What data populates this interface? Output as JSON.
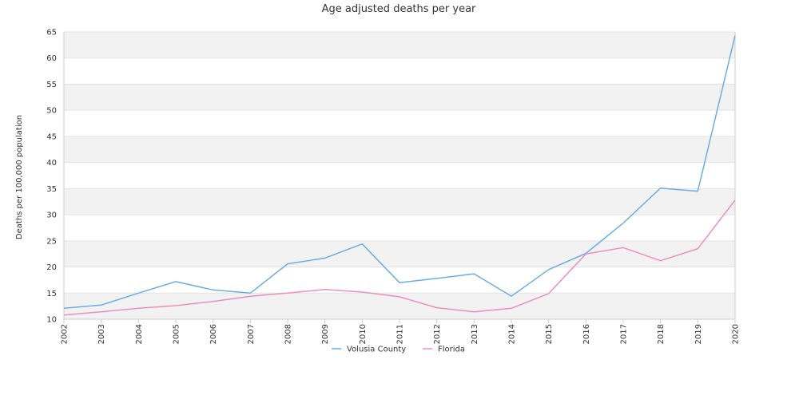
{
  "chart_data": {
    "type": "line",
    "title": "Age adjusted deaths per year",
    "ylabel": "Deaths per 100,000 population",
    "xlabel": "",
    "ylim": [
      10,
      65
    ],
    "yticks": [
      10,
      15,
      20,
      25,
      30,
      35,
      40,
      45,
      50,
      55,
      60,
      65
    ],
    "x": [
      "2002",
      "2003",
      "2004",
      "2005",
      "2006",
      "2007",
      "2008",
      "2009",
      "2010",
      "2011",
      "2012",
      "2013",
      "2014",
      "2015",
      "2016",
      "2017",
      "2018",
      "2019",
      "2020"
    ],
    "grid": "horizontal bands",
    "legend_position": "bottom-center",
    "series": [
      {
        "name": "Volusia County",
        "color": "#6aaee8",
        "values": [
          12.1,
          12.7,
          15.0,
          17.2,
          15.6,
          15.0,
          20.6,
          21.7,
          24.4,
          17.0,
          17.8,
          18.7,
          14.4,
          19.5,
          22.6,
          28.4,
          35.1,
          34.5,
          64.3
        ]
      },
      {
        "name": "Florida",
        "color": "#ec8fbf",
        "values": [
          10.8,
          11.4,
          12.1,
          12.6,
          13.4,
          14.4,
          15.0,
          15.7,
          15.2,
          14.3,
          12.2,
          11.4,
          12.1,
          14.9,
          22.5,
          23.7,
          21.2,
          23.5,
          32.8
        ]
      }
    ]
  }
}
